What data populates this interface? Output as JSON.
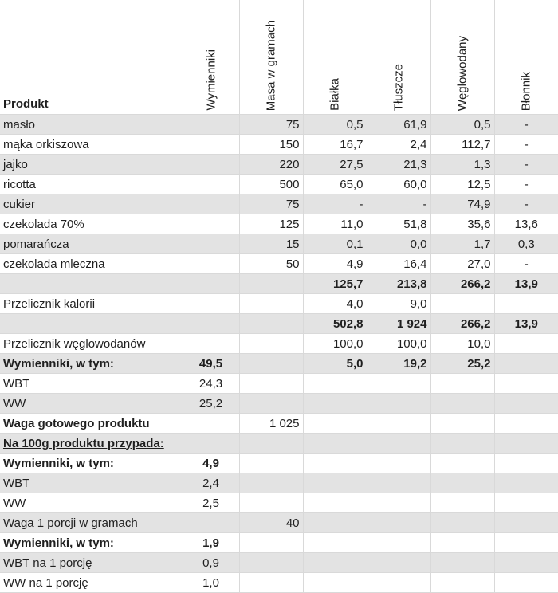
{
  "headers": {
    "product": "Produkt",
    "exchangers": "Wymienniki",
    "mass": "Masa w gramach",
    "protein": "Białka",
    "fat": "Tłuszcze",
    "carbs": "Węglowodany",
    "fiber": "Błonnik"
  },
  "rows": [
    {
      "shaded": true,
      "cells": [
        "masło",
        "",
        "75",
        "0,5",
        "61,9",
        "0,5",
        "-"
      ]
    },
    {
      "shaded": false,
      "cells": [
        "mąka orkiszowa",
        "",
        "150",
        "16,7",
        "2,4",
        "112,7",
        "-"
      ]
    },
    {
      "shaded": true,
      "cells": [
        "jajko",
        "",
        "220",
        "27,5",
        "21,3",
        "1,3",
        "-"
      ]
    },
    {
      "shaded": false,
      "cells": [
        "ricotta",
        "",
        "500",
        "65,0",
        "60,0",
        "12,5",
        "-"
      ]
    },
    {
      "shaded": true,
      "cells": [
        "cukier",
        "",
        "75",
        "-",
        "-",
        "74,9",
        "-"
      ]
    },
    {
      "shaded": false,
      "cells": [
        "czekolada 70%",
        "",
        "125",
        "11,0",
        "51,8",
        "35,6",
        "13,6"
      ]
    },
    {
      "shaded": true,
      "cells": [
        "pomarańcza",
        "",
        "15",
        "0,1",
        "0,0",
        "1,7",
        "0,3"
      ]
    },
    {
      "shaded": false,
      "cells": [
        "czekolada mleczna",
        "",
        "50",
        "4,9",
        "16,4",
        "27,0",
        "-"
      ]
    },
    {
      "shaded": true,
      "cells": [
        "",
        "",
        "",
        "125,7",
        "213,8",
        "266,2",
        "13,9"
      ]
    },
    {
      "shaded": false,
      "cells": [
        "Przelicznik kalorii",
        "",
        "",
        "4,0",
        "9,0",
        "",
        ""
      ]
    },
    {
      "shaded": true,
      "cells": [
        "",
        "",
        "",
        "502,8",
        "1 924",
        "266,2",
        "13,9"
      ]
    },
    {
      "shaded": false,
      "cells": [
        "Przelicznik węglowodanów",
        "",
        "",
        "100,0",
        "100,0",
        "10,0",
        ""
      ]
    },
    {
      "shaded": true,
      "cells": [
        "Wymienniki, w tym:",
        "49,5",
        "",
        "5,0",
        "19,2",
        "25,2",
        ""
      ]
    },
    {
      "shaded": false,
      "cells": [
        "WBT",
        "24,3",
        "",
        "",
        "",
        "",
        ""
      ]
    },
    {
      "shaded": true,
      "cells": [
        "WW",
        "25,2",
        "",
        "",
        "",
        "",
        ""
      ]
    },
    {
      "shaded": false,
      "cells": [
        "Waga gotowego produktu",
        "",
        "1 025",
        "",
        "",
        "",
        ""
      ]
    },
    {
      "shaded": true,
      "cells": [
        "Na 100g produktu przypada:",
        "",
        "",
        "",
        "",
        "",
        ""
      ]
    },
    {
      "shaded": false,
      "cells": [
        "Wymienniki, w tym:",
        "4,9",
        "",
        "",
        "",
        "",
        ""
      ]
    },
    {
      "shaded": true,
      "cells": [
        "WBT",
        "2,4",
        "",
        "",
        "",
        "",
        ""
      ]
    },
    {
      "shaded": false,
      "cells": [
        "WW",
        "2,5",
        "",
        "",
        "",
        "",
        ""
      ]
    },
    {
      "shaded": true,
      "cells": [
        "Waga 1 porcji w gramach",
        "",
        "40",
        "",
        "",
        "",
        ""
      ]
    },
    {
      "shaded": false,
      "cells": [
        "Wymienniki, w tym:",
        "1,9",
        "",
        "",
        "",
        "",
        ""
      ]
    },
    {
      "shaded": true,
      "cells": [
        "WBT na 1 porcję",
        "0,9",
        "",
        "",
        "",
        "",
        ""
      ]
    },
    {
      "shaded": false,
      "cells": [
        "WW na 1 porcję",
        "1,0",
        "",
        "",
        "",
        "",
        ""
      ]
    }
  ]
}
